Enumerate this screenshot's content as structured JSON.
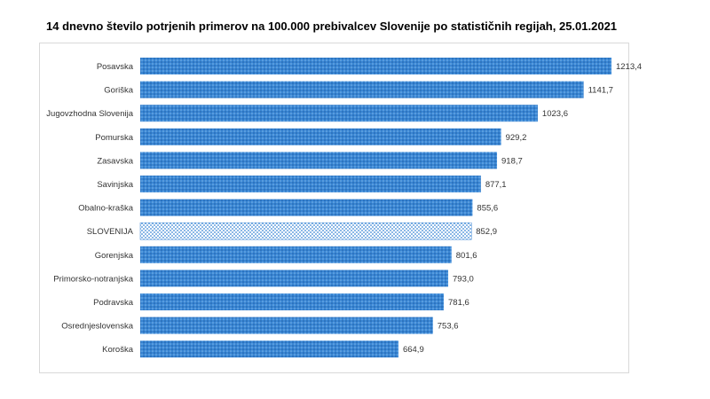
{
  "chart_data": {
    "type": "bar",
    "orientation": "horizontal",
    "title": "14 dnevno število potrjenih primerov na 100.000  prebivalcev Slovenije po statističnih regijah, 25.01.2021",
    "xlabel": "",
    "ylabel": "",
    "xlim": [
      0,
      1250
    ],
    "grid": false,
    "legend": "none",
    "bar_color": "#3a86d4",
    "highlight_color": "#cfe4f7",
    "categories": [
      "Posavska",
      "Goriška",
      "Jugovzhodna Slovenija",
      "Pomurska",
      "Zasavska",
      "Savinjska",
      "Obalno-kraška",
      "SLOVENIJA",
      "Gorenjska",
      "Primorsko-notranjska",
      "Podravska",
      "Osrednjeslovenska",
      "Koroška"
    ],
    "values": [
      1213.4,
      1141.7,
      1023.6,
      929.2,
      918.7,
      877.1,
      855.6,
      852.9,
      801.6,
      793.0,
      781.6,
      753.6,
      664.9
    ],
    "value_labels": [
      "1213,4",
      "1141,7",
      "1023,6",
      "929,2",
      "918,7",
      "877,1",
      "855,6",
      "852,9",
      "801,6",
      "793,0",
      "781,6",
      "753,6",
      "664,9"
    ],
    "highlight_category": "SLOVENIJA"
  }
}
